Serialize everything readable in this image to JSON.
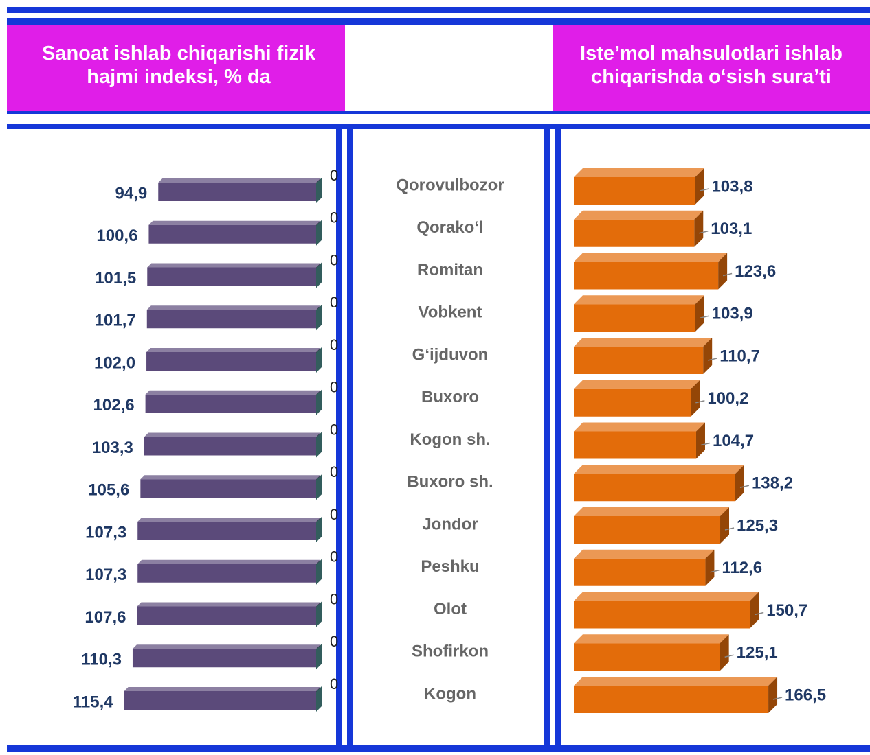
{
  "chart_data": [
    {
      "type": "bar",
      "orientation": "horizontal-reversed",
      "title": "Sanoat ishlab chiqarishi fizik hajmi indeksi, % da",
      "categories": [
        "Qorovulbozor",
        "Qorako‘l",
        "Romitan",
        "Vobkent",
        "G‘ijduvon",
        "Buxoro",
        "Kogon sh.",
        "Buxoro sh.",
        "Jondor",
        "Peshku",
        "Olot",
        "Shofirkon",
        "Kogon"
      ],
      "xlim": [
        0,
        190
      ],
      "series": [
        {
          "color": "#5b4a7a",
          "values": [
            94.9,
            100.6,
            101.5,
            101.7,
            102.0,
            102.6,
            103.3,
            105.6,
            107.3,
            107.3,
            107.6,
            110.3,
            115.4
          ],
          "value_labels": [
            "94,9",
            "100,6",
            "101,5",
            "101,7",
            "102,0",
            "102,6",
            "103,3",
            "105,6",
            "107,3",
            "107,3",
            "107,6",
            "110,3",
            "115,4"
          ]
        },
        {
          "color": "#4f8f8f",
          "values": [
            0,
            0,
            0,
            0,
            0,
            0,
            0,
            0,
            0,
            0,
            0,
            0,
            0
          ]
        }
      ]
    },
    {
      "type": "bar",
      "orientation": "horizontal",
      "title": "Iste’mol mahsulotlari ishlab chiqarishda o‘sish sura’ti",
      "xlim": [
        0,
        250
      ],
      "series": [
        {
          "color": "#e36c0a",
          "values": [
            103.8,
            103.1,
            123.6,
            103.9,
            110.7,
            100.2,
            104.7,
            138.2,
            125.3,
            112.6,
            150.7,
            125.1,
            166.5
          ],
          "value_labels": [
            "103,8",
            "103,1",
            "123,6",
            "103,9",
            "110,7",
            "100,2",
            "104,7",
            "138,2",
            "125,3",
            "112,6",
            "150,7",
            "125,1",
            "166,5"
          ]
        }
      ]
    }
  ]
}
